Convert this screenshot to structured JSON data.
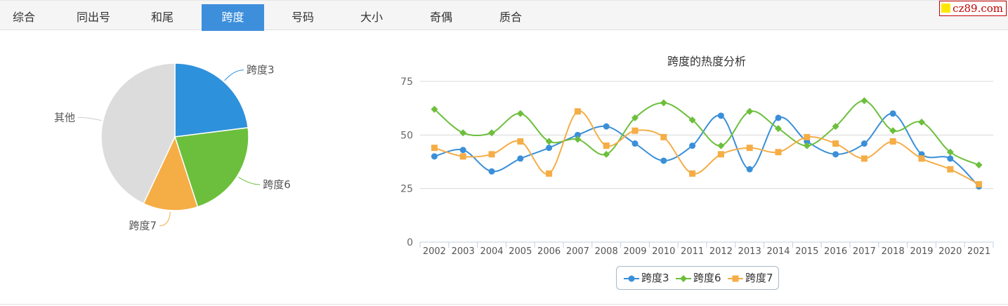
{
  "tabs": [
    {
      "label": "综合"
    },
    {
      "label": "同出号"
    },
    {
      "label": "和尾"
    },
    {
      "label": "跨度",
      "active": true
    },
    {
      "label": "号码"
    },
    {
      "label": "大小"
    },
    {
      "label": "奇偶"
    },
    {
      "label": "质合"
    }
  ],
  "logo": {
    "text": "cz89.com"
  },
  "colors": {
    "blue": "#3a8fd8",
    "green": "#6cbf3c",
    "orange": "#f5ad46",
    "gray": "#dcdcdc"
  },
  "chart_data": [
    {
      "type": "pie",
      "slices": [
        {
          "name": "跨度3",
          "value": 23,
          "color": "#2e91dc"
        },
        {
          "name": "跨度6",
          "value": 22,
          "color": "#6cbf3c"
        },
        {
          "name": "跨度7",
          "value": 12,
          "color": "#f5ad46"
        },
        {
          "name": "其他",
          "value": 43,
          "color": "#dcdcdc"
        }
      ]
    },
    {
      "type": "line",
      "title": "跨度的热度分析",
      "x": [
        "2002",
        "2003",
        "2004",
        "2005",
        "2006",
        "2007",
        "2008",
        "2009",
        "2010",
        "2011",
        "2012",
        "2013",
        "2014",
        "2015",
        "2016",
        "2017",
        "2018",
        "2019",
        "2020",
        "2021"
      ],
      "yticks": [
        "0",
        "25",
        "50",
        "75"
      ],
      "ylim": [
        0,
        75
      ],
      "grid": true,
      "legend": "bottom-center",
      "series": [
        {
          "name": "跨度3",
          "color": "#3a8fd8",
          "marker": "circle",
          "values": [
            40,
            43,
            33,
            39,
            44,
            50,
            54,
            46,
            38,
            45,
            59,
            34,
            58,
            47,
            41,
            46,
            60,
            41,
            39,
            26
          ]
        },
        {
          "name": "跨度6",
          "color": "#6cbf3c",
          "marker": "diamond",
          "values": [
            62,
            51,
            51,
            60,
            47,
            48,
            41,
            58,
            65,
            57,
            45,
            61,
            53,
            45,
            54,
            66,
            52,
            56,
            42,
            36
          ]
        },
        {
          "name": "跨度7",
          "color": "#f5ad46",
          "marker": "square",
          "values": [
            44,
            40,
            41,
            47,
            32,
            61,
            45,
            52,
            49,
            32,
            41,
            44,
            42,
            49,
            46,
            39,
            47,
            39,
            34,
            27
          ]
        }
      ]
    }
  ]
}
